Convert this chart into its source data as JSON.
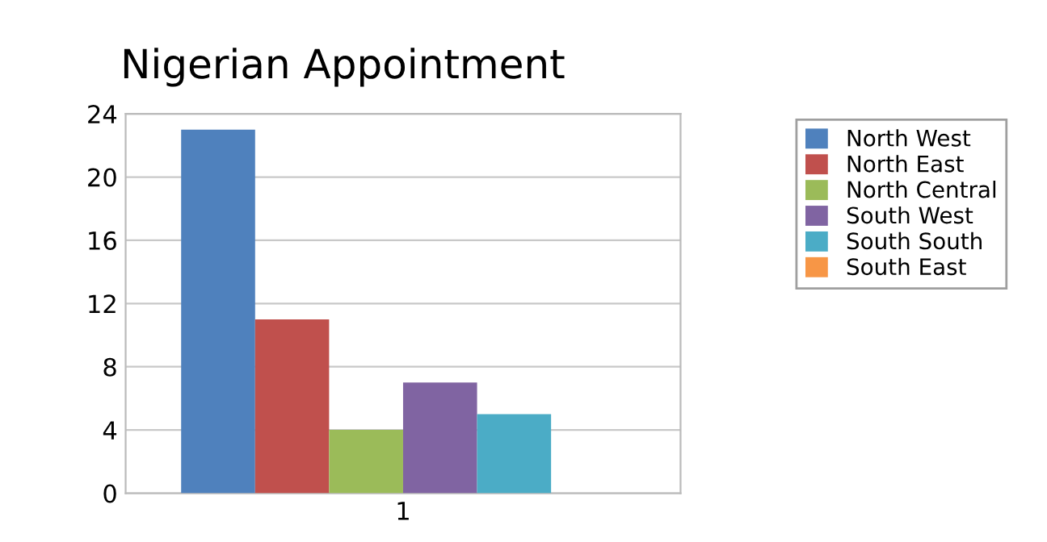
{
  "chart_data": {
    "type": "bar",
    "title": "Nigerian Appointment",
    "categories": [
      "1"
    ],
    "series": [
      {
        "name": "North West",
        "color": "#4f81bd",
        "values": [
          23
        ]
      },
      {
        "name": "North East",
        "color": "#c0504d",
        "values": [
          11
        ]
      },
      {
        "name": "North Central",
        "color": "#9bbb59",
        "values": [
          4
        ]
      },
      {
        "name": "South West",
        "color": "#8064a2",
        "values": [
          7
        ]
      },
      {
        "name": "South South",
        "color": "#4bacc6",
        "values": [
          5
        ]
      },
      {
        "name": "South East",
        "color": "#f79646",
        "values": [
          0
        ]
      }
    ],
    "ylim": [
      0,
      24
    ],
    "yticks": [
      0,
      4,
      8,
      12,
      16,
      20,
      24
    ],
    "grid": "y",
    "legend": "right"
  }
}
